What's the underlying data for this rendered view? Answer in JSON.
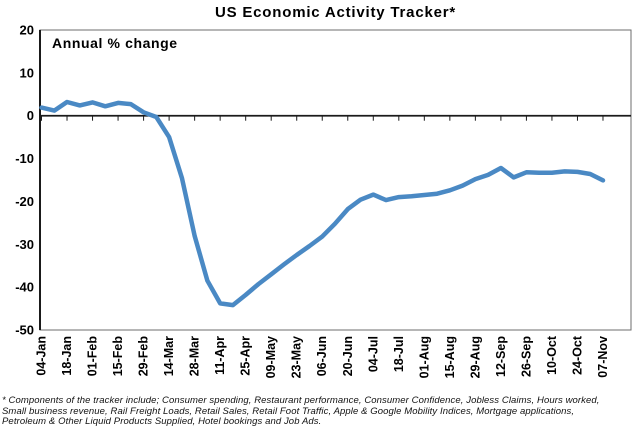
{
  "chart_data": {
    "type": "line",
    "title": "US Economic Activity Tracker*",
    "annotation": "Annual % change",
    "x": [
      "04-Jan",
      "11-Jan",
      "18-Jan",
      "25-Jan",
      "01-Feb",
      "08-Feb",
      "15-Feb",
      "22-Feb",
      "29-Feb",
      "07-Mar",
      "14-Mar",
      "21-Mar",
      "28-Mar",
      "04-Apr",
      "11-Apr",
      "18-Apr",
      "25-Apr",
      "02-May",
      "09-May",
      "16-May",
      "23-May",
      "30-May",
      "06-Jun",
      "13-Jun",
      "20-Jun",
      "27-Jun",
      "04-Jul",
      "11-Jul",
      "18-Jul",
      "25-Jul",
      "01-Aug",
      "08-Aug",
      "15-Aug",
      "22-Aug",
      "29-Aug",
      "05-Sep",
      "12-Sep",
      "19-Sep",
      "26-Sep",
      "03-Oct",
      "10-Oct",
      "17-Oct",
      "24-Oct",
      "31-Oct",
      "07-Nov"
    ],
    "values": [
      1.9,
      1.2,
      3.2,
      2.4,
      3.1,
      2.2,
      3.0,
      2.7,
      0.8,
      -0.3,
      -5.0,
      -14.5,
      -28.0,
      -38.5,
      -43.8,
      -44.2,
      -41.8,
      -39.3,
      -37.0,
      -34.7,
      -32.5,
      -30.4,
      -28.2,
      -25.2,
      -21.8,
      -19.6,
      -18.4,
      -19.7,
      -19.0,
      -18.8,
      -18.5,
      -18.2,
      -17.4,
      -16.3,
      -14.8,
      -13.8,
      -12.2,
      -14.4,
      -13.2,
      -13.3,
      -13.3,
      -13.0,
      -13.1,
      -13.6,
      -15.1
    ],
    "x_tick_labels": [
      "04-Jan",
      "18-Jan",
      "01-Feb",
      "15-Feb",
      "29-Feb",
      "14-Mar",
      "28-Mar",
      "11-Apr",
      "25-Apr",
      "09-May",
      "23-May",
      "06-Jun",
      "20-Jun",
      "04-Jul",
      "18-Jul",
      "01-Aug",
      "15-Aug",
      "29-Aug",
      "12-Sep",
      "26-Sep",
      "10-Oct",
      "24-Oct",
      "07-Nov"
    ],
    "y_ticks": [
      20,
      10,
      0,
      -10,
      -20,
      -30,
      -40,
      -50
    ],
    "ylim": [
      -50,
      20
    ],
    "grid": false,
    "legend": "none",
    "line_color": "#4a89c4",
    "border_color": "#6e6e6e",
    "axis_color": "#1a1a1a"
  },
  "footnote": {
    "lines": [
      "* Components of the tracker include; Consumer spending, Restaurant performance, Consumer Confidence, Jobless Claims, Hours worked,",
      "Small business revenue, Rail Freight Loads, Retail Sales, Retail Foot Traffic, Apple & Google Mobility Indices, Mortgage applications,",
      "Petroleum & Other Liquid Products Supplied, Hotel bookings and Job Ads."
    ]
  }
}
